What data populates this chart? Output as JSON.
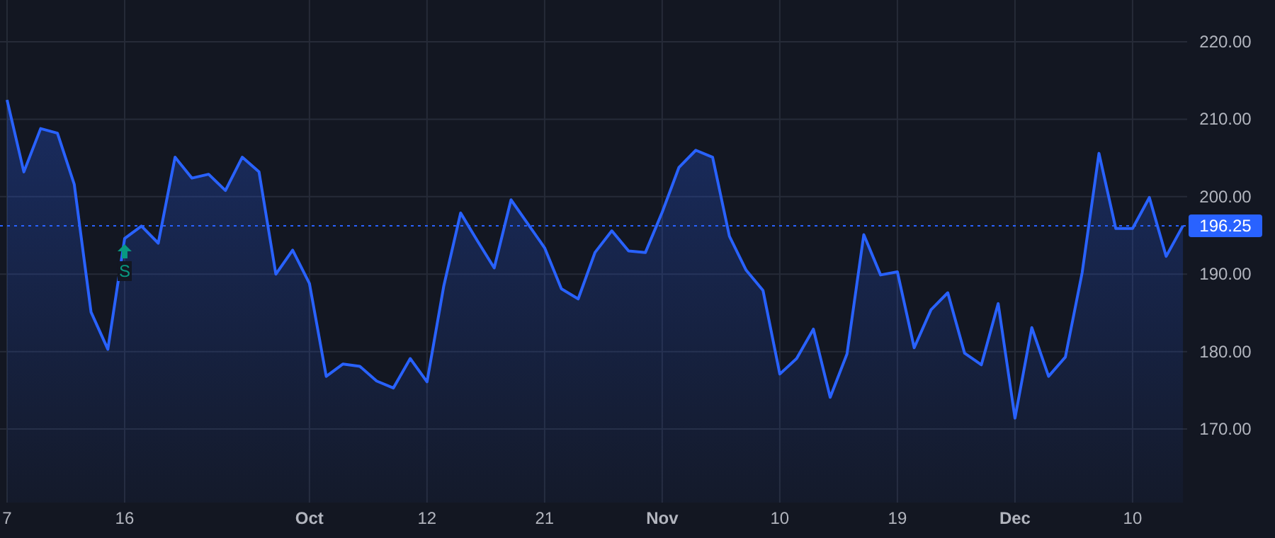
{
  "chart_data": {
    "type": "area",
    "categories": [
      "7",
      null,
      null,
      null,
      null,
      null,
      null,
      "16",
      null,
      null,
      null,
      null,
      null,
      null,
      null,
      null,
      null,
      null,
      "Oct",
      null,
      null,
      null,
      null,
      null,
      null,
      "12",
      null,
      null,
      null,
      null,
      null,
      null,
      "21",
      null,
      null,
      null,
      null,
      null,
      null,
      "Nov",
      null,
      null,
      null,
      null,
      null,
      null,
      "10",
      null,
      null,
      null,
      null,
      null,
      null,
      "19",
      null,
      null,
      null,
      null,
      null,
      null,
      "Dec",
      null,
      null,
      null,
      null,
      null,
      null,
      "10",
      null,
      null,
      null
    ],
    "series": [
      {
        "color": "#2962ff",
        "values": [
          212.5,
          203.2,
          208.8,
          208.2,
          201.6,
          185.1,
          180.3,
          194.6,
          196.2,
          194.0,
          205.1,
          202.4,
          202.9,
          200.8,
          205.1,
          203.2,
          190.0,
          193.1,
          188.8,
          176.8,
          178.4,
          178.1,
          176.2,
          175.3,
          179.1,
          176.1,
          188.5,
          197.9,
          194.3,
          190.8,
          199.6,
          196.5,
          193.4,
          188.1,
          186.8,
          192.8,
          195.6,
          193.0,
          192.8,
          198.0,
          203.8,
          206.0,
          205.1,
          194.9,
          190.5,
          187.9,
          177.1,
          179.1,
          182.9,
          174.1,
          179.7,
          195.1,
          189.9,
          190.3,
          180.5,
          185.4,
          187.6,
          179.8,
          178.3,
          186.2,
          171.4,
          183.1,
          176.8,
          179.3,
          190.2,
          205.6,
          195.9,
          195.9,
          199.9,
          192.3,
          196.25
        ]
      }
    ],
    "ylim": [
      160.5,
      225.4
    ],
    "yticks": [
      {
        "value": 170,
        "label": "170.00"
      },
      {
        "value": 180,
        "label": "180.00"
      },
      {
        "value": 190,
        "label": "190.00"
      },
      {
        "value": 200,
        "label": "200.00"
      },
      {
        "value": 210,
        "label": "210.00"
      },
      {
        "value": 220,
        "label": "220.00"
      }
    ],
    "grid": true,
    "ref_lines": [
      {
        "axis": "y",
        "value": 196.25,
        "label": "196.25",
        "color": "#2962ff",
        "line_style": "dotted"
      }
    ],
    "annotations": [
      {
        "text": "S",
        "x": "16",
        "y": 194.6
      }
    ]
  }
}
